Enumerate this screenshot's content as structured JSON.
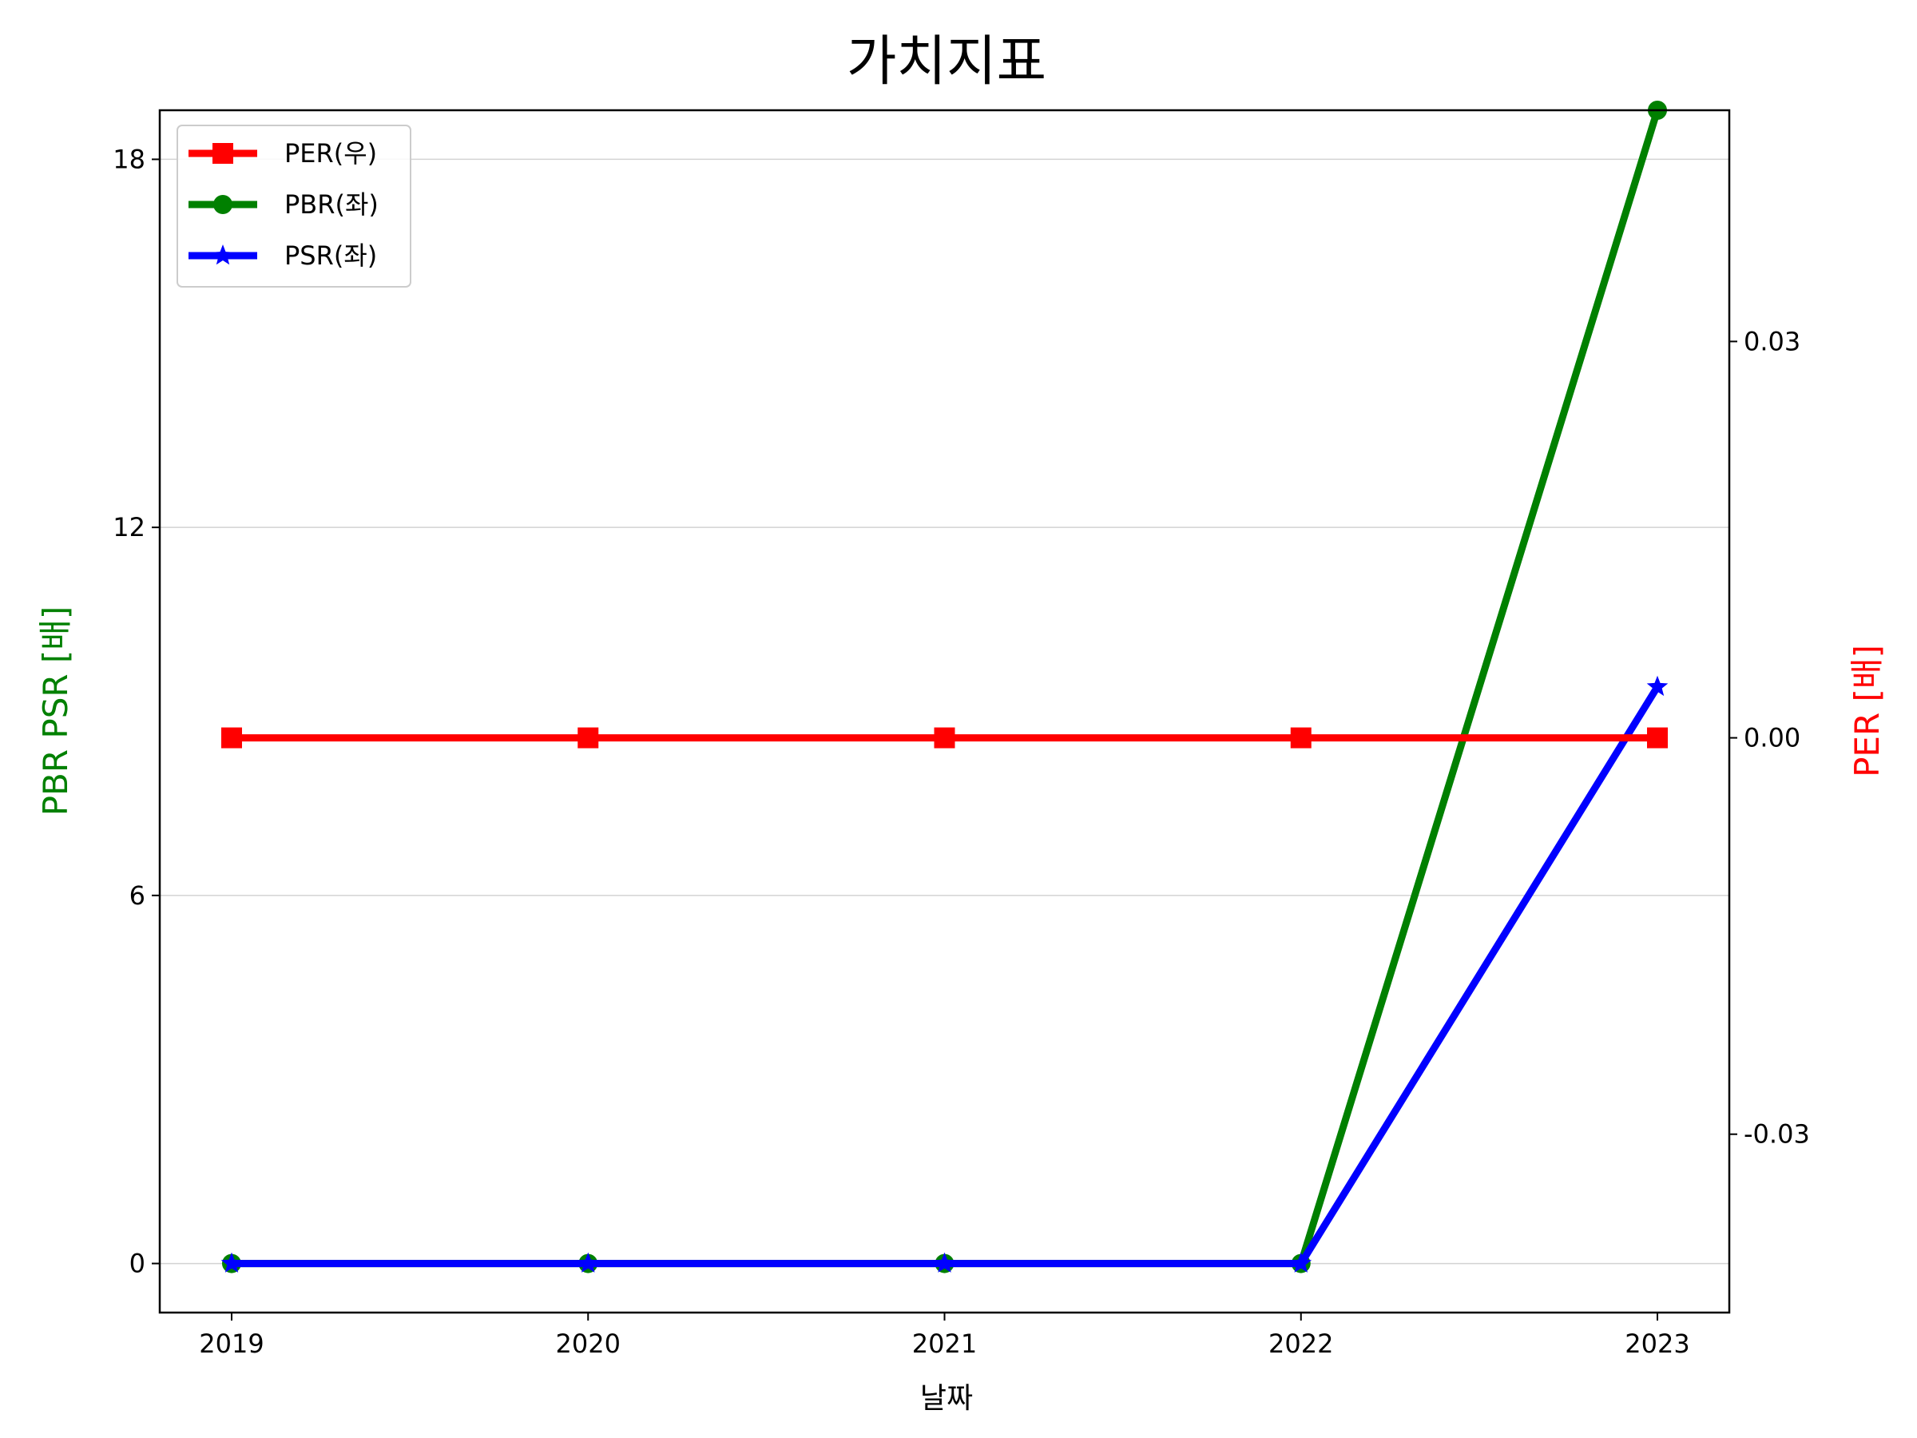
{
  "chart_data": {
    "type": "line",
    "title": "가치지표",
    "xlabel": "날짜",
    "ylabel_left": "PBR PSR [배]",
    "ylabel_right": "PER [배]",
    "x": [
      "2019",
      "2020",
      "2021",
      "2022",
      "2023"
    ],
    "ylim_left": [
      -0.8,
      18.8
    ],
    "yticks_left": [
      "0",
      "6",
      "12",
      "18"
    ],
    "ylim_right": [
      -0.0435,
      0.0475
    ],
    "yticks_right": [
      "-0.03",
      "0.00",
      "0.03"
    ],
    "grid": "horizontal",
    "legend": "top-left",
    "series": [
      {
        "name": "PER(우)",
        "axis": "right",
        "color": "#ff0000",
        "marker": "square",
        "values": [
          0,
          0,
          0,
          0,
          0
        ]
      },
      {
        "name": "PBR(좌)",
        "axis": "left",
        "color": "#008000",
        "marker": "circle",
        "values": [
          0,
          0,
          0,
          0,
          18.8
        ]
      },
      {
        "name": "PSR(좌)",
        "axis": "left",
        "color": "#0000ff",
        "marker": "star",
        "values": [
          0,
          0,
          0,
          0,
          9.4
        ]
      }
    ]
  }
}
